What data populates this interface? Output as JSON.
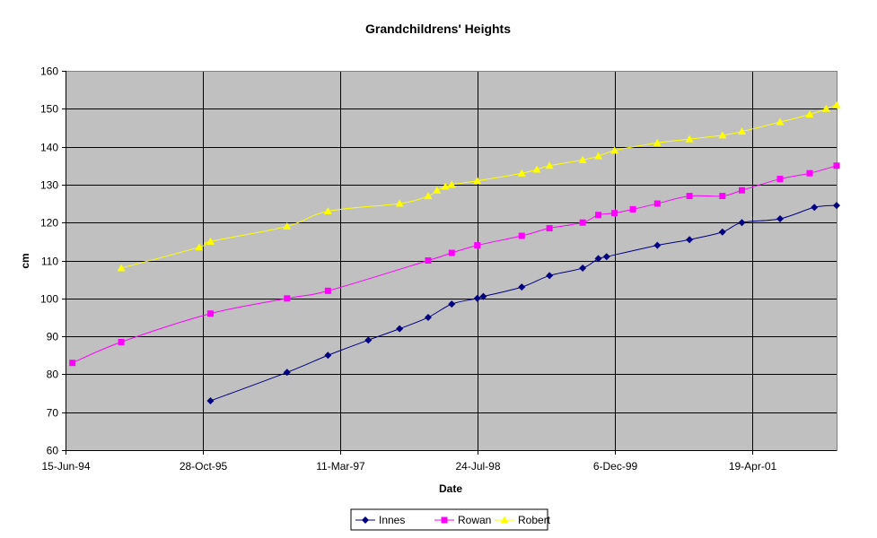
{
  "chart_data": {
    "type": "line",
    "title": "Grandchildrens' Heights",
    "xlabel": "Date",
    "ylabel": "cm",
    "ylim": [
      60,
      160
    ],
    "yticks": [
      60,
      70,
      80,
      90,
      100,
      110,
      120,
      130,
      140,
      150,
      160
    ],
    "xlim": [
      "1994-06-15",
      "2002-02-22"
    ],
    "xticks": [
      "1994-06-15",
      "1995-10-28",
      "1997-03-11",
      "1998-07-24",
      "1999-12-06",
      "2001-04-19"
    ],
    "xtick_labels": [
      "15-Jun-94",
      "28-Oct-95",
      "11-Mar-97",
      "24-Jul-98",
      "6-Dec-99",
      "19-Apr-01"
    ],
    "grid": true,
    "plot_background": "#C0C0C0",
    "legend_position": "bottom",
    "series": [
      {
        "name": "Innes",
        "color": "#000080",
        "marker": "diamond",
        "x": [
          "1995-11-25",
          "1996-08-30",
          "1997-01-26",
          "1997-06-22",
          "1997-10-14",
          "1998-01-26",
          "1998-04-22",
          "1998-07-24",
          "1998-08-15",
          "1999-01-02",
          "1999-04-13",
          "1999-08-12",
          "1999-10-08",
          "1999-11-07",
          "2000-05-10",
          "2000-09-04",
          "2001-01-02",
          "2001-03-14",
          "2001-07-31",
          "2001-12-03",
          "2002-02-22"
        ],
        "y": [
          73,
          80.5,
          85,
          89,
          92,
          95,
          98.5,
          100,
          100.5,
          103,
          106,
          108,
          110.5,
          111,
          114,
          115.5,
          117.5,
          120,
          121,
          124,
          124.5
        ]
      },
      {
        "name": "Rowan",
        "color": "#FF00FF",
        "marker": "square",
        "x": [
          "1994-07-10",
          "1995-01-04",
          "1995-11-25",
          "1996-08-30",
          "1997-01-26",
          "1998-01-26",
          "1998-04-22",
          "1998-07-24",
          "1999-01-02",
          "1999-04-13",
          "1999-08-12",
          "1999-10-08",
          "1999-12-06",
          "2000-02-11",
          "2000-05-10",
          "2000-09-04",
          "2001-01-02",
          "2001-03-14",
          "2001-07-31",
          "2001-11-16",
          "2002-02-22"
        ],
        "y": [
          83,
          88.5,
          96,
          100,
          102,
          110,
          112,
          114,
          116.5,
          118.5,
          120,
          122,
          122.5,
          123.5,
          125,
          127,
          127,
          128.5,
          131.5,
          133,
          135
        ]
      },
      {
        "name": "Robert",
        "color": "#FFFF00",
        "marker": "triangle",
        "x": [
          "1995-01-04",
          "1995-10-15",
          "1995-11-25",
          "1996-08-30",
          "1997-01-26",
          "1997-10-14",
          "1998-01-26",
          "1998-02-27",
          "1998-03-30",
          "1998-04-22",
          "1998-07-24",
          "1999-01-02",
          "1999-02-26",
          "1999-04-13",
          "1999-08-12",
          "1999-10-08",
          "1999-12-06",
          "2000-05-10",
          "2000-09-04",
          "2001-01-02",
          "2001-03-14",
          "2001-07-31",
          "2001-11-16",
          "2002-01-15",
          "2002-02-22"
        ],
        "y": [
          108,
          113.5,
          115,
          119,
          123,
          125,
          127,
          128.5,
          129.5,
          130,
          131,
          133,
          134,
          135,
          136.5,
          137.5,
          139,
          141,
          142,
          143,
          144,
          146.5,
          148.5,
          150,
          151
        ]
      }
    ]
  }
}
